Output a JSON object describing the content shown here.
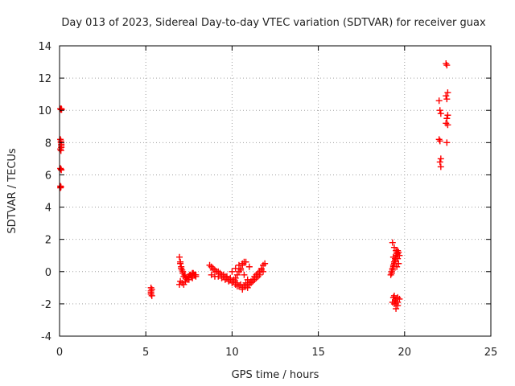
{
  "chart_data": {
    "type": "scatter",
    "title": "Day 013 of 2023, Sidereal Day-to-day VTEC variation (SDTVAR) for receiver guax",
    "xlabel": "GPS time / hours",
    "ylabel": "SDTVAR / TECUs",
    "xlim": [
      0,
      25
    ],
    "ylim": [
      -4,
      14
    ],
    "xticks": [
      "0",
      "5",
      "10",
      "15",
      "20",
      "25"
    ],
    "yticks": [
      "-4",
      "-2",
      "0",
      "2",
      "4",
      "6",
      "8",
      "10",
      "12",
      "14"
    ],
    "grid": true,
    "marker": "+",
    "color": "#ff0000",
    "series": [
      {
        "name": "SDTVAR",
        "x": [
          0.05,
          0.08,
          0.1,
          0.12,
          0.05,
          0.08,
          0.1,
          0.05,
          0.08,
          0.1,
          0.05,
          0.08,
          0.1,
          0.05,
          0.08,
          0.05,
          0.08,
          0.1,
          5.3,
          5.3,
          5.3,
          5.35,
          5.35,
          5.3,
          6.95,
          7.0,
          7.05,
          7.1,
          7.15,
          7.2,
          7.3,
          7.4,
          7.5,
          7.6,
          7.7,
          7.8,
          7.9,
          7.0,
          7.1,
          7.2,
          7.3,
          7.5,
          7.7,
          7.9,
          7.05,
          7.15,
          7.25,
          7.35,
          7.45,
          7.55,
          7.65,
          7.75,
          7.85,
          6.95,
          7.0,
          8.7,
          8.8,
          8.9,
          9.0,
          9.1,
          9.2,
          9.3,
          9.4,
          9.5,
          9.6,
          9.7,
          9.8,
          9.9,
          10.0,
          10.1,
          10.2,
          10.3,
          10.4,
          10.5,
          10.6,
          10.7,
          10.8,
          10.9,
          11.0,
          11.1,
          11.2,
          11.3,
          11.4,
          11.5,
          11.6,
          11.7,
          11.8,
          11.9,
          8.8,
          9.0,
          9.2,
          9.4,
          9.6,
          9.8,
          10.0,
          10.2,
          10.4,
          10.6,
          10.8,
          11.0,
          11.2,
          11.4,
          11.6,
          11.8,
          8.9,
          9.1,
          9.3,
          9.5,
          9.7,
          9.9,
          10.1,
          10.3,
          10.5,
          10.7,
          10.9,
          11.1,
          11.3,
          11.5,
          11.7,
          10.0,
          10.2,
          10.4,
          10.6,
          10.8,
          11.0,
          10.5,
          10.7,
          10.9,
          10.3,
          10.6,
          19.2,
          19.25,
          19.3,
          19.35,
          19.4,
          19.45,
          19.5,
          19.55,
          19.6,
          19.65,
          19.3,
          19.4,
          19.5,
          19.6,
          19.35,
          19.45,
          19.55,
          19.25,
          19.3,
          19.35,
          19.4,
          19.45,
          19.5,
          19.55,
          19.6,
          19.65,
          19.7,
          19.35,
          19.45,
          19.5,
          19.6,
          19.7,
          19.4,
          19.5,
          19.6,
          19.5,
          19.6,
          19.3,
          19.4,
          22.0,
          22.05,
          22.1,
          22.0,
          22.05,
          22.1,
          22.05,
          22.1,
          22.4,
          22.45,
          22.5,
          22.4,
          22.45,
          22.5,
          22.45,
          22.4,
          22.5,
          22.45
        ],
        "y": [
          10.1,
          10.05,
          10.1,
          10.05,
          8.2,
          8.0,
          7.8,
          7.6,
          7.5,
          7.9,
          6.4,
          6.35,
          6.3,
          5.3,
          5.25,
          5.2,
          8.1,
          7.7,
          -1.0,
          -1.2,
          -1.4,
          -1.5,
          -1.1,
          -1.3,
          0.9,
          0.6,
          0.3,
          0.1,
          -0.1,
          -0.3,
          -0.4,
          -0.5,
          -0.3,
          -0.2,
          -0.1,
          -0.2,
          -0.3,
          -0.6,
          -0.7,
          -0.8,
          -0.6,
          -0.5,
          -0.4,
          -0.2,
          0.2,
          0.0,
          -0.2,
          -0.4,
          -0.3,
          -0.2,
          -0.3,
          -0.1,
          -0.2,
          -0.8,
          0.5,
          0.4,
          0.3,
          0.2,
          0.1,
          0.0,
          0.0,
          -0.1,
          -0.2,
          -0.3,
          -0.3,
          -0.4,
          -0.5,
          -0.5,
          -0.6,
          -0.5,
          -0.4,
          -0.2,
          0.0,
          0.2,
          0.4,
          0.6,
          -0.7,
          -0.8,
          -0.7,
          -0.6,
          -0.5,
          -0.3,
          -0.2,
          -0.1,
          0.0,
          0.2,
          0.4,
          0.5,
          -0.2,
          -0.3,
          -0.3,
          -0.4,
          -0.5,
          -0.6,
          -0.7,
          -0.8,
          -0.9,
          -1.0,
          -0.9,
          -0.8,
          -0.6,
          -0.4,
          -0.2,
          0.0,
          0.1,
          0.0,
          -0.1,
          -0.2,
          -0.3,
          -0.4,
          -0.6,
          -0.7,
          -0.8,
          -0.9,
          -1.0,
          -0.7,
          -0.5,
          -0.3,
          0.1,
          0.0,
          0.2,
          0.4,
          0.5,
          0.6,
          0.3,
          0.1,
          -0.2,
          -0.5,
          -0.9,
          -1.1,
          -0.2,
          0.0,
          0.2,
          0.4,
          0.6,
          0.8,
          1.0,
          1.2,
          0.8,
          0.5,
          1.8,
          1.5,
          1.3,
          1.1,
          0.9,
          0.7,
          0.3,
          -0.1,
          0.1,
          0.3,
          0.5,
          0.7,
          0.9,
          1.1,
          1.3,
          1.2,
          1.0,
          -1.6,
          -1.8,
          -2.0,
          -1.9,
          -1.7,
          -1.5,
          -1.7,
          -2.1,
          -2.3,
          -1.6,
          -1.9,
          -2.0,
          10.6,
          10.0,
          9.8,
          8.2,
          8.1,
          7.0,
          6.8,
          6.5,
          12.9,
          12.8,
          11.1,
          10.9,
          10.7,
          9.7,
          9.5,
          9.2,
          9.1,
          8.0
        ]
      }
    ]
  }
}
